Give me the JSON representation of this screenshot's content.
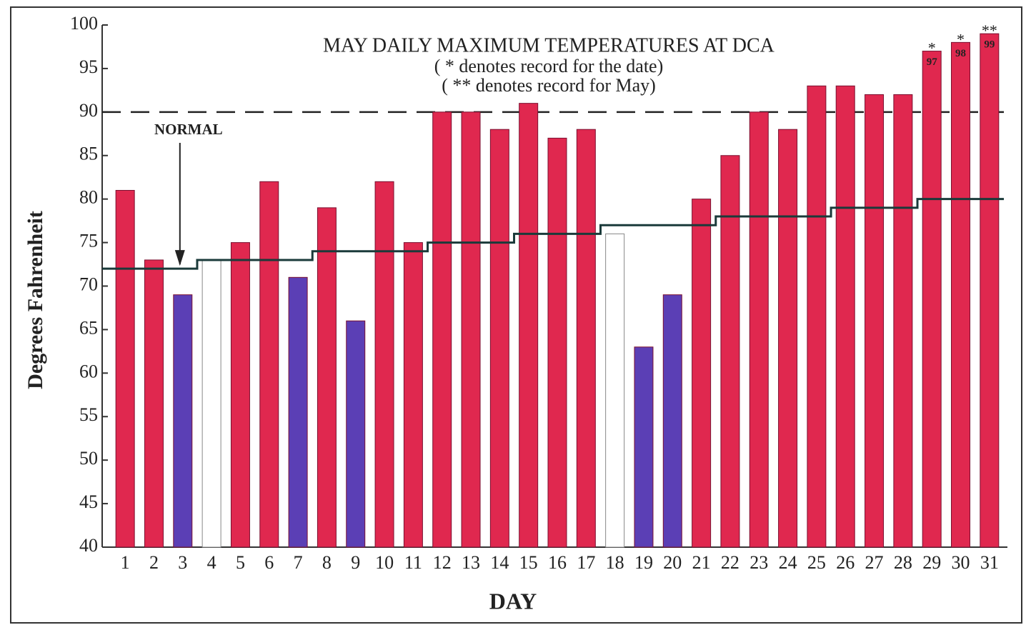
{
  "chart_data": {
    "type": "bar",
    "title": "MAY DAILY MAXIMUM TEMPERATURES AT DCA",
    "subtitle": [
      "( * denotes record for the date)",
      "( ** denotes record for May)"
    ],
    "x_label": "DAY",
    "y_label": "Degrees Fahrenheit",
    "categories": [
      "1",
      "2",
      "3",
      "4",
      "5",
      "6",
      "7",
      "8",
      "9",
      "10",
      "11",
      "12",
      "13",
      "14",
      "15",
      "16",
      "17",
      "18",
      "19",
      "20",
      "21",
      "22",
      "23",
      "24",
      "25",
      "26",
      "27",
      "28",
      "29",
      "30",
      "31"
    ],
    "series": [
      {
        "name": "Maximum temperature",
        "values": [
          81,
          73,
          69,
          73,
          75,
          82,
          71,
          79,
          66,
          82,
          75,
          90,
          90,
          88,
          91,
          87,
          88,
          76,
          63,
          69,
          80,
          85,
          90,
          88,
          93,
          93,
          92,
          92,
          97,
          98,
          99
        ],
        "colors": [
          "#e0284f",
          "#e0284f",
          "#5b3fb5",
          "#ffffff",
          "#e0284f",
          "#e0284f",
          "#5b3fb5",
          "#e0284f",
          "#5b3fb5",
          "#e0284f",
          "#e0284f",
          "#e0284f",
          "#e0284f",
          "#e0284f",
          "#e0284f",
          "#e0284f",
          "#e0284f",
          "#ffffff",
          "#5b3fb5",
          "#5b3fb5",
          "#e0284f",
          "#e0284f",
          "#e0284f",
          "#e0284f",
          "#e0284f",
          "#e0284f",
          "#e0284f",
          "#e0284f",
          "#e0284f",
          "#e0284f",
          "#e0284f"
        ],
        "value_labels": [
          null,
          null,
          null,
          null,
          null,
          null,
          null,
          null,
          null,
          null,
          null,
          null,
          null,
          null,
          null,
          null,
          null,
          null,
          null,
          null,
          null,
          null,
          null,
          null,
          null,
          null,
          null,
          null,
          "97",
          "98",
          "99"
        ],
        "record_marks": [
          null,
          null,
          null,
          null,
          null,
          null,
          null,
          null,
          null,
          null,
          null,
          null,
          null,
          null,
          null,
          null,
          null,
          null,
          null,
          null,
          null,
          null,
          null,
          null,
          null,
          null,
          null,
          null,
          "*",
          "*",
          "**"
        ]
      },
      {
        "name": "NORMAL",
        "type": "step",
        "color": "#1a3a3a",
        "values": [
          72,
          72,
          72,
          73,
          73,
          73,
          73,
          74,
          74,
          74,
          74,
          75,
          75,
          75,
          76,
          76,
          76,
          77,
          77,
          77,
          77,
          78,
          78,
          78,
          78,
          79,
          79,
          79,
          80,
          80,
          80
        ]
      }
    ],
    "reference_line": 90,
    "annotation": {
      "text": "NORMAL",
      "category": 3
    },
    "ylim": [
      40,
      100
    ],
    "yticks": [
      40,
      45,
      50,
      55,
      60,
      65,
      70,
      75,
      80,
      85,
      90,
      95,
      100
    ]
  }
}
